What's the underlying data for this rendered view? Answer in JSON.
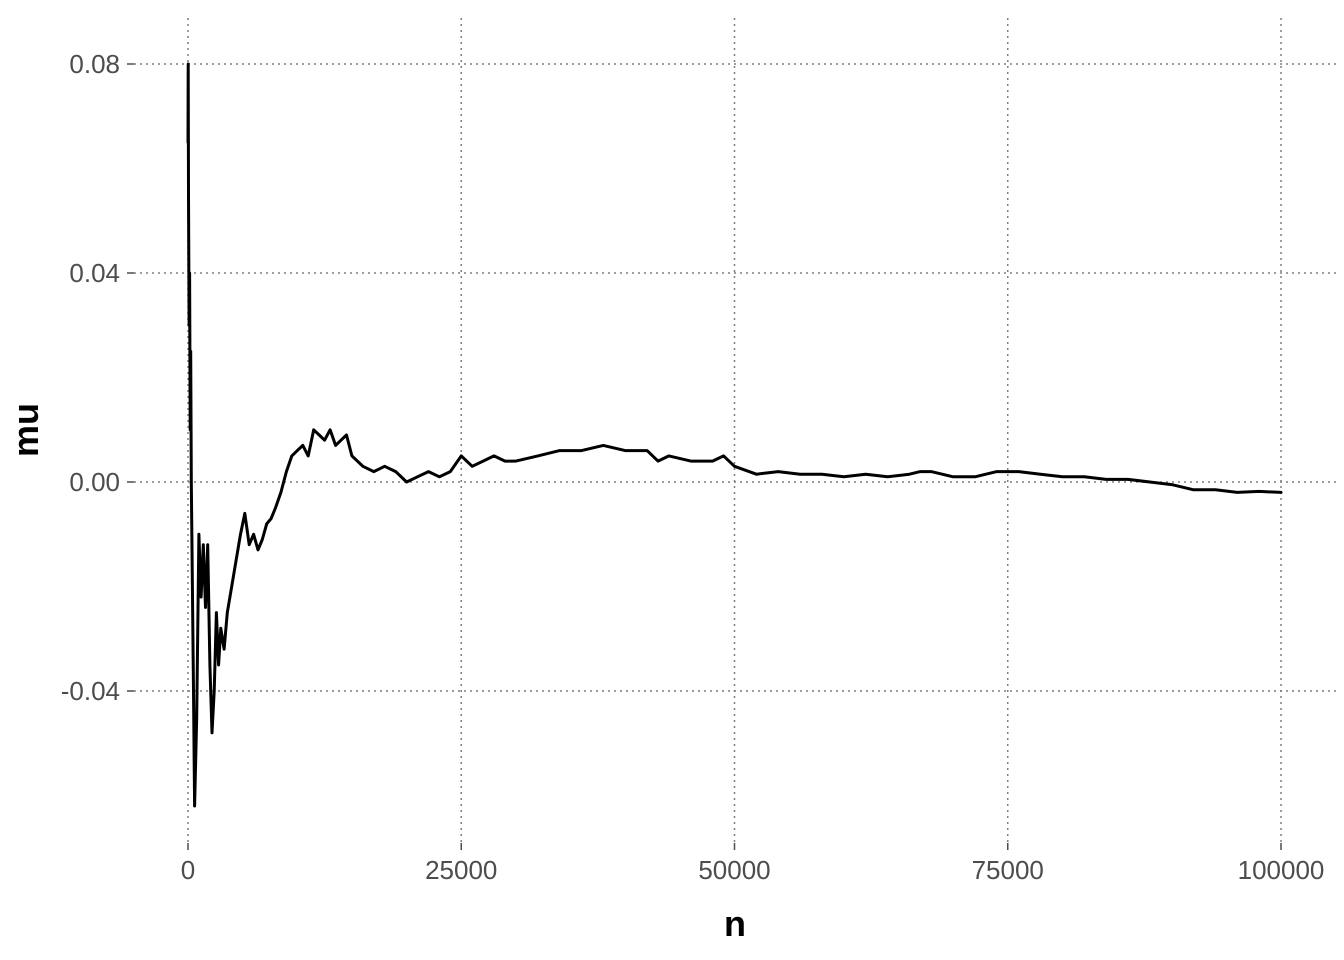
{
  "chart_data": {
    "type": "line",
    "title": "",
    "xlabel": "n",
    "ylabel": "mu",
    "xlim": [
      0,
      100000
    ],
    "ylim": [
      -0.062,
      0.082
    ],
    "x_ticks": [
      0,
      25000,
      50000,
      75000,
      100000
    ],
    "x_tick_labels": [
      "0",
      "25000",
      "50000",
      "75000",
      "100000"
    ],
    "y_ticks": [
      -0.04,
      0.0,
      0.04,
      0.08
    ],
    "y_tick_labels": [
      "-0.04",
      "0.00",
      "0.04",
      "0.08"
    ],
    "grid": true,
    "legend": "none",
    "line_color": "#000000",
    "series": [
      {
        "x": [
          1,
          20,
          50,
          100,
          150,
          200,
          250,
          300,
          400,
          500,
          600,
          800,
          1000,
          1200,
          1400,
          1600,
          1800,
          2000,
          2200,
          2400,
          2600,
          2800,
          3000,
          3300,
          3600,
          4000,
          4400,
          4800,
          5200,
          5600,
          6000,
          6400,
          6800,
          7200,
          7600,
          8000,
          8500,
          9000,
          9500,
          10000,
          10500,
          11000,
          11500,
          12000,
          12500,
          13000,
          13500,
          14000,
          14500,
          15000,
          16000,
          17000,
          18000,
          19000,
          20000,
          21000,
          22000,
          23000,
          24000,
          25000,
          26000,
          27000,
          28000,
          29000,
          30000,
          32000,
          34000,
          36000,
          38000,
          40000,
          42000,
          43000,
          44000,
          46000,
          48000,
          49000,
          50000,
          52000,
          54000,
          56000,
          58000,
          60000,
          62000,
          64000,
          66000,
          67000,
          68000,
          70000,
          72000,
          74000,
          76000,
          78000,
          80000,
          82000,
          84000,
          86000,
          88000,
          90000,
          92000,
          94000,
          96000,
          98000,
          100000
        ],
        "y": [
          0.065,
          0.08,
          0.055,
          0.03,
          0.04,
          0.01,
          0.025,
          0.0,
          -0.02,
          -0.04,
          -0.062,
          -0.045,
          -0.01,
          -0.022,
          -0.012,
          -0.024,
          -0.012,
          -0.035,
          -0.048,
          -0.04,
          -0.025,
          -0.035,
          -0.028,
          -0.032,
          -0.025,
          -0.02,
          -0.015,
          -0.01,
          -0.006,
          -0.012,
          -0.01,
          -0.013,
          -0.011,
          -0.008,
          -0.007,
          -0.005,
          -0.002,
          0.002,
          0.005,
          0.006,
          0.007,
          0.005,
          0.01,
          0.009,
          0.008,
          0.01,
          0.007,
          0.008,
          0.009,
          0.005,
          0.003,
          0.002,
          0.003,
          0.002,
          0.0,
          0.001,
          0.002,
          0.001,
          0.002,
          0.005,
          0.003,
          0.004,
          0.005,
          0.004,
          0.004,
          0.005,
          0.006,
          0.006,
          0.007,
          0.006,
          0.006,
          0.004,
          0.005,
          0.004,
          0.004,
          0.005,
          0.003,
          0.0015,
          0.002,
          0.0015,
          0.0015,
          0.001,
          0.0015,
          0.001,
          0.0015,
          0.002,
          0.002,
          0.001,
          0.001,
          0.002,
          0.002,
          0.0015,
          0.001,
          0.001,
          0.0005,
          0.0005,
          0.0,
          -0.0005,
          -0.0015,
          -0.0015,
          -0.002,
          -0.0018,
          -0.002
        ]
      }
    ]
  }
}
